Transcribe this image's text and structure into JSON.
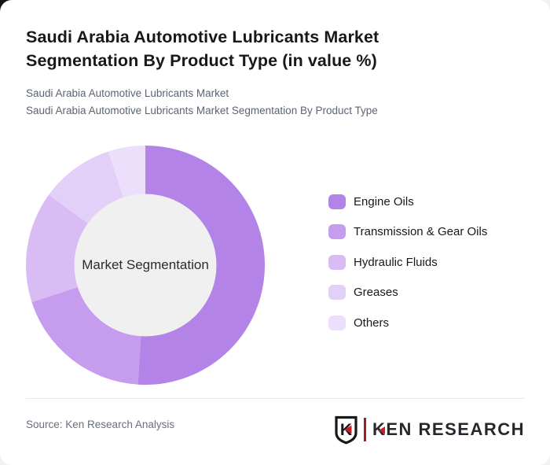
{
  "header": {
    "title": "Saudi Arabia Automotive Lubricants Market Segmentation By Product Type (in value %)",
    "subtitle_line1": "Saudi Arabia Automotive Lubricants Market",
    "subtitle_line2": "Saudi Arabia Automotive Lubricants Market Segmentation By Product Type"
  },
  "chart_data": {
    "type": "pie",
    "subtype": "donut",
    "title": "Saudi Arabia Automotive Lubricants Market Segmentation By Product Type (in value %)",
    "center_label": "Market Segmentation",
    "categories": [
      "Engine Oils",
      "Transmission & Gear Oils",
      "Hydraulic Fluids",
      "Greases",
      "Others"
    ],
    "values": [
      51,
      19,
      15,
      10,
      5
    ],
    "unit": "%",
    "colors": [
      "#b383e8",
      "#c69cef",
      "#d9bcf4",
      "#e3d0f8",
      "#ecdffb"
    ],
    "center_fill": "#f0f0f0",
    "legend_position": "right",
    "start_angle_deg": 0,
    "direction": "clockwise"
  },
  "footer": {
    "source": "Source: Ken Research Analysis",
    "logo": {
      "shield_letter": "K",
      "text_k": "K",
      "text_rest": "EN RESEARCH",
      "accent_color": "#c42127"
    }
  }
}
